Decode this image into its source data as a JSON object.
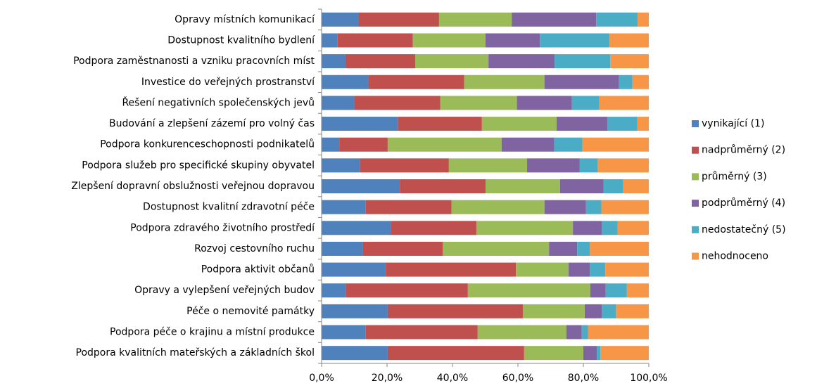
{
  "chart_data": {
    "type": "stacked_barh",
    "categories": [
      "Opravy místních komunikací",
      "Dostupnost kvalitního bydlení",
      "Podpora zaměstnanosti a vzniku pracovních míst",
      "Investice do veřejných prostranství",
      "Řešení negativních společenských jevů",
      "Budování a zlepšení zázemí pro volný čas",
      "Podpora konkurenceschopnosti podnikatelů",
      "Podpora služeb pro specifické skupiny obyvatel",
      "Zlepšení dopravní obslužnosti veřejnou dopravou",
      "Dostupnost kvalitní zdravotní péče",
      "Podpora zdravého životního prostředí",
      "Rozvoj cestovního ruchu",
      "Podpora aktivit občanů",
      "Opravy a vylepšení veřejných budov",
      "Péče o nemovité památky",
      "Podpora péče o krajinu a místní produkce",
      "Podpora kvalitních mateřských a základních škol"
    ],
    "series": [
      {
        "name": "vynikající (1)",
        "color": "#4F81BD",
        "values": [
          11.4,
          4.9,
          7.3,
          14.4,
          10.1,
          23.4,
          5.4,
          11.8,
          23.9,
          13.5,
          21.1,
          12.5,
          19.6,
          7.5,
          20.2,
          13.5,
          20.2
        ]
      },
      {
        "name": "nadprůměrný (2)",
        "color": "#C0504D",
        "values": [
          24.5,
          23.0,
          21.3,
          29.2,
          26.2,
          25.6,
          14.8,
          27.1,
          26.2,
          26.2,
          26.2,
          24.5,
          39.8,
          37.2,
          41.3,
          34.2,
          41.7
        ]
      },
      {
        "name": "průměrný (3)",
        "color": "#9BBB59",
        "values": [
          22.2,
          22.2,
          22.4,
          24.5,
          23.4,
          22.8,
          34.8,
          23.9,
          22.8,
          28.4,
          29.5,
          32.5,
          16.1,
          37.4,
          18.9,
          27.1,
          18.1
        ]
      },
      {
        "name": "podprůměrný (4)",
        "color": "#8064A2",
        "values": [
          25.8,
          16.6,
          20.2,
          22.8,
          16.8,
          15.5,
          16.1,
          16.1,
          13.3,
          12.7,
          8.8,
          8.6,
          6.5,
          4.7,
          5.2,
          4.7,
          4.1
        ]
      },
      {
        "name": "nedostatečný (5)",
        "color": "#4BACC6",
        "values": [
          12.7,
          21.3,
          17.0,
          4.1,
          8.4,
          9.2,
          8.6,
          5.4,
          6.0,
          4.7,
          4.9,
          3.9,
          4.7,
          6.5,
          4.3,
          1.9,
          1.1
        ]
      },
      {
        "name": "nehodnoceno",
        "color": "#F79646",
        "values": [
          3.4,
          12.0,
          11.8,
          5.0,
          15.1,
          3.5,
          20.3,
          15.7,
          7.8,
          14.5,
          9.5,
          18.0,
          13.3,
          6.7,
          10.1,
          18.6,
          14.8
        ]
      }
    ],
    "xlim": [
      0,
      100
    ],
    "xticks": [
      {
        "value": 0,
        "label": "0,0%"
      },
      {
        "value": 20,
        "label": "20,0%"
      },
      {
        "value": 40,
        "label": "40,0%"
      },
      {
        "value": 60,
        "label": "60,0%"
      },
      {
        "value": 80,
        "label": "80,0%"
      },
      {
        "value": 100,
        "label": "100,0%"
      }
    ],
    "legend": "right"
  }
}
